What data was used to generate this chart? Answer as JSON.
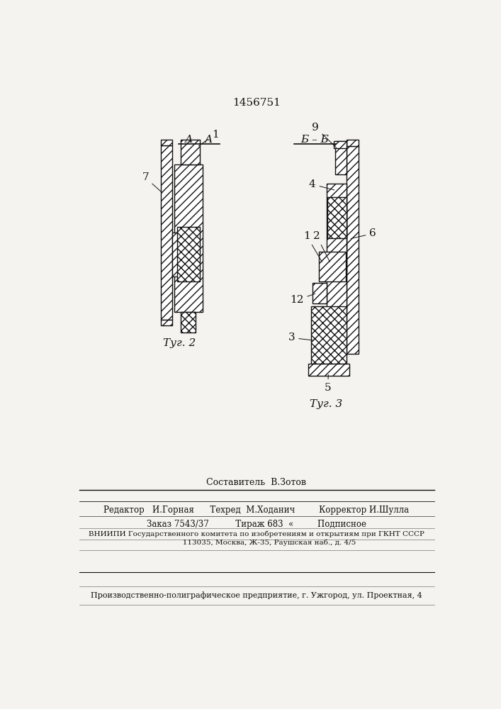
{
  "title_number": "1456751",
  "section_AA_label": "А – А",
  "section_BB_label": "Б – Б",
  "fig2_label": "Τуг. 2",
  "fig3_label": "Τуг. 3",
  "bottom_text_1": "Составитель  В.Зотов",
  "bottom_text_2": "Редактор   И.Горная      Техред  М.Ходанич         Корректор И.Шулла",
  "bottom_text_3": "Заказ 7543/37          Тираж 683  «         Подписное",
  "bottom_text_4": "ВНИИПИ Государственного комитета по изобретениям и открытиям при ГКНТ СССР",
  "bottom_text_5": "           113035, Москва, Ж-35, Раушская наб., д. 4/5",
  "bottom_text_6": "Производственно-полиграфическое предприятие, г. Ужгород, ул. Проектная, 4",
  "background_color": "#f5f3ef",
  "line_color": "#111111"
}
